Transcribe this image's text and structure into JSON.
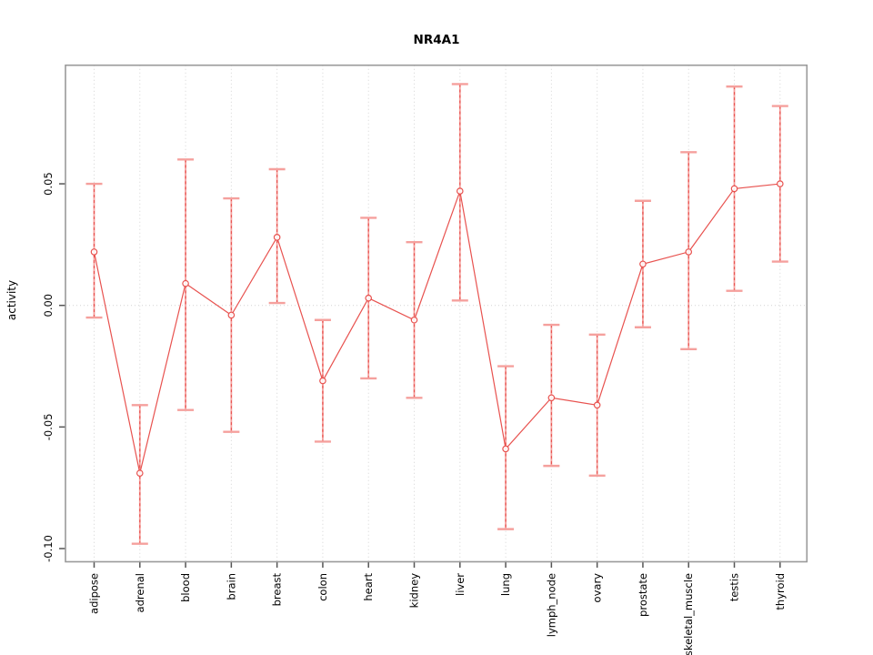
{
  "chart_data": {
    "type": "line",
    "title": "NR4A1",
    "xlabel": "",
    "ylabel": "activity",
    "categories": [
      "adipose",
      "adrenal",
      "blood",
      "brain",
      "breast",
      "colon",
      "heart",
      "kidney",
      "liver",
      "lung",
      "lymph_node",
      "ovary",
      "prostate",
      "skeletal_muscle",
      "testis",
      "thyroid"
    ],
    "series": [
      {
        "name": "activity",
        "values": [
          0.022,
          -0.069,
          0.009,
          -0.004,
          0.028,
          -0.031,
          0.003,
          -0.006,
          0.047,
          -0.059,
          -0.038,
          -0.041,
          0.017,
          0.022,
          0.048,
          0.05
        ],
        "lower": [
          -0.005,
          -0.098,
          -0.043,
          -0.052,
          0.001,
          -0.056,
          -0.03,
          -0.038,
          0.002,
          -0.092,
          -0.066,
          -0.07,
          -0.009,
          -0.018,
          0.006,
          0.018
        ],
        "upper": [
          0.05,
          -0.041,
          0.06,
          0.044,
          0.056,
          -0.006,
          0.036,
          0.026,
          0.091,
          -0.025,
          -0.008,
          -0.012,
          0.043,
          0.063,
          0.09,
          0.082
        ]
      }
    ],
    "yticks": [
      0.05,
      0.0,
      -0.05,
      -0.1
    ],
    "ytick_labels": [
      "0.05",
      "0.00",
      "-0.05",
      "-0.10"
    ],
    "ylim": [
      -0.1054,
      0.0987
    ],
    "grid": {
      "vertical_per_category": true,
      "horizontal_zero_line": true,
      "style": "dotted"
    },
    "legend_position": "none",
    "point_marker": "open-circle",
    "error_bars": true,
    "colors": {
      "line": "#e8524f",
      "point_stroke": "#e8524f",
      "error_bar_light": "#f5a09d",
      "error_bar_dash": "#e8524f",
      "grid": "#d4d4d4",
      "frame": "#9a9a9a",
      "tick": "#555555",
      "text": "#000000",
      "background": "#ffffff"
    }
  }
}
